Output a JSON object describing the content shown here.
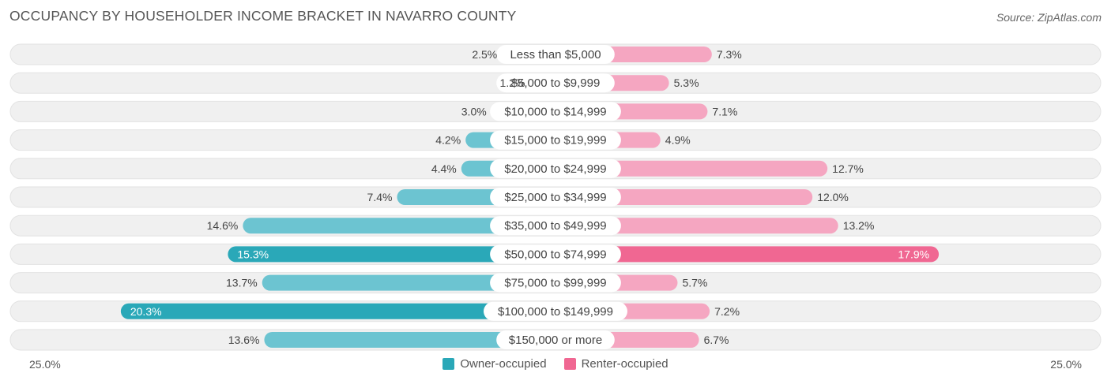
{
  "header": {
    "title": "OCCUPANCY BY HOUSEHOLDER INCOME BRACKET IN NAVARRO COUNTY",
    "source": "Source: ZipAtlas.com"
  },
  "axis": {
    "left_label": "25.0%",
    "right_label": "25.0%"
  },
  "legend": {
    "owner_label": "Owner-occupied",
    "renter_label": "Renter-occupied"
  },
  "colors": {
    "owner": "#6cc4d1",
    "owner_strong": "#2aa8b8",
    "renter": "#f5a6c1",
    "renter_strong": "#f06792",
    "row_bg": "#f0f0f0"
  },
  "chart_data": {
    "type": "bar",
    "orientation": "horizontal-diverging",
    "title": "OCCUPANCY BY HOUSEHOLDER INCOME BRACKET IN NAVARRO COUNTY",
    "xlim": [
      -25.0,
      25.0
    ],
    "categories": [
      "Less than $5,000",
      "$5,000 to $9,999",
      "$10,000 to $14,999",
      "$15,000 to $19,999",
      "$20,000 to $24,999",
      "$25,000 to $34,999",
      "$35,000 to $49,999",
      "$50,000 to $74,999",
      "$75,000 to $99,999",
      "$100,000 to $149,999",
      "$150,000 or more"
    ],
    "series": [
      {
        "name": "Owner-occupied",
        "values": [
          2.5,
          1.2,
          3.0,
          4.2,
          4.4,
          7.4,
          14.6,
          15.3,
          13.7,
          20.3,
          13.6
        ],
        "labels": [
          "2.5%",
          "1.2%",
          "3.0%",
          "4.2%",
          "4.4%",
          "7.4%",
          "14.6%",
          "15.3%",
          "13.7%",
          "20.3%",
          "13.6%"
        ]
      },
      {
        "name": "Renter-occupied",
        "values": [
          7.3,
          5.3,
          7.1,
          4.9,
          12.7,
          12.0,
          13.2,
          17.9,
          5.7,
          7.2,
          6.7
        ],
        "labels": [
          "7.3%",
          "5.3%",
          "7.1%",
          "4.9%",
          "12.7%",
          "12.0%",
          "13.2%",
          "17.9%",
          "5.7%",
          "7.2%",
          "6.7%"
        ]
      }
    ]
  }
}
